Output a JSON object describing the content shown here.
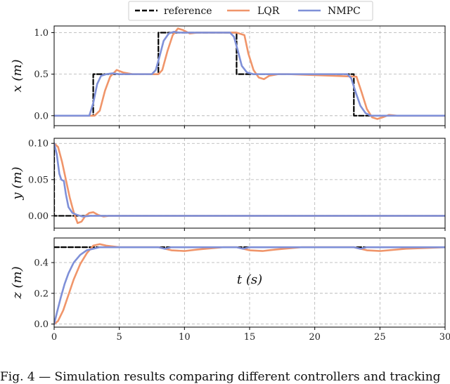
{
  "legend": [
    {
      "label": "reference",
      "color": "#000000",
      "style": "dashed"
    },
    {
      "label": "LQR",
      "color": "#f0956a",
      "style": "solid"
    },
    {
      "label": "NMPC",
      "color": "#7f90d8",
      "style": "solid"
    }
  ],
  "xlabel": "t (s)",
  "caption": "Fig. 4 — Simulation results comparing different controllers and tracking",
  "chart_data": [
    {
      "type": "line",
      "ylabel": "x (m)",
      "xlim": [
        0,
        30
      ],
      "ylim": [
        -0.12,
        1.08
      ],
      "xticks": [
        0,
        5,
        10,
        15,
        20,
        25,
        30
      ],
      "yticks": [
        0.0,
        0.5,
        1.0
      ],
      "ytick_labels": [
        "0.0",
        "0.5",
        "1.0"
      ],
      "grid": true,
      "series": [
        {
          "name": "reference",
          "x": [
            0,
            3,
            3,
            8,
            8,
            14,
            14,
            23,
            23,
            30
          ],
          "y": [
            0,
            0,
            0.5,
            0.5,
            1.0,
            1.0,
            0.5,
            0.5,
            0,
            0
          ]
        },
        {
          "name": "LQR",
          "x": [
            0,
            3.1,
            3.5,
            3.9,
            4.3,
            4.8,
            5.3,
            6,
            8,
            8.3,
            8.7,
            9.1,
            9.5,
            9.9,
            10.4,
            11,
            14,
            14.6,
            14.9,
            15.3,
            15.7,
            16.1,
            16.5,
            17.2,
            18,
            23.2,
            23.6,
            24,
            24.4,
            24.8,
            25.2,
            25.7,
            26.3,
            27,
            30
          ],
          "y": [
            0,
            0,
            0.06,
            0.3,
            0.47,
            0.55,
            0.52,
            0.5,
            0.5,
            0.55,
            0.78,
            0.97,
            1.05,
            1.03,
            0.99,
            1.0,
            1.0,
            0.97,
            0.75,
            0.55,
            0.46,
            0.44,
            0.48,
            0.5,
            0.5,
            0.47,
            0.28,
            0.08,
            -0.02,
            -0.04,
            -0.02,
            0.01,
            0.0,
            0.0,
            0.0
          ]
        },
        {
          "name": "NMPC",
          "x": [
            0,
            2.7,
            3.0,
            3.3,
            3.6,
            4.0,
            4.5,
            5,
            7.5,
            7.8,
            8.1,
            8.4,
            8.8,
            9.2,
            9.6,
            10,
            13.5,
            13.8,
            14.1,
            14.4,
            14.8,
            15.3,
            16,
            22.5,
            22.8,
            23.1,
            23.5,
            23.9,
            24.3,
            25,
            30
          ],
          "y": [
            0,
            0,
            0.15,
            0.38,
            0.48,
            0.5,
            0.51,
            0.5,
            0.5,
            0.55,
            0.72,
            0.9,
            0.99,
            1.01,
            1.0,
            1.0,
            1.0,
            0.95,
            0.78,
            0.6,
            0.52,
            0.5,
            0.5,
            0.5,
            0.45,
            0.3,
            0.12,
            0.03,
            0.0,
            0.0,
            0.0
          ]
        }
      ]
    },
    {
      "type": "line",
      "ylabel": "y (m)",
      "xlim": [
        0,
        30
      ],
      "ylim": [
        -0.017,
        0.107
      ],
      "xticks": [
        0,
        5,
        10,
        15,
        20,
        25,
        30
      ],
      "yticks": [
        0.0,
        0.05,
        0.1
      ],
      "ytick_labels": [
        "0.00",
        "0.05",
        "0.10"
      ],
      "grid": true,
      "series": [
        {
          "name": "reference",
          "x": [
            0,
            0,
            30
          ],
          "y": [
            0.1,
            0,
            0
          ]
        },
        {
          "name": "LQR",
          "x": [
            0,
            0.3,
            0.6,
            0.9,
            1.2,
            1.5,
            1.8,
            2.1,
            2.4,
            2.7,
            3.0,
            3.4,
            3.8,
            4.2,
            30
          ],
          "y": [
            0.1,
            0.095,
            0.075,
            0.05,
            0.025,
            0.005,
            -0.01,
            -0.008,
            0.0,
            0.004,
            0.005,
            0.001,
            -0.001,
            0.0,
            0.0
          ]
        },
        {
          "name": "NMPC",
          "x": [
            0,
            0.2,
            0.4,
            0.55,
            0.75,
            0.9,
            1.1,
            1.4,
            1.8,
            2.2,
            2.8,
            30
          ],
          "y": [
            0.1,
            0.085,
            0.058,
            0.05,
            0.048,
            0.03,
            0.012,
            0.004,
            0.001,
            -0.001,
            0.0,
            0.0
          ]
        }
      ]
    },
    {
      "type": "line",
      "ylabel": "z (m)",
      "xlim": [
        0,
        30
      ],
      "ylim": [
        -0.02,
        0.56
      ],
      "xticks": [
        0,
        5,
        10,
        15,
        20,
        25,
        30
      ],
      "xtick_labels": [
        "0",
        "5",
        "10",
        "15",
        "20",
        "25",
        "30"
      ],
      "yticks": [
        0.0,
        0.2,
        0.4
      ],
      "ytick_labels": [
        "0.0",
        "0.2",
        "0.4"
      ],
      "grid": true,
      "series": [
        {
          "name": "reference",
          "x": [
            0,
            0,
            30
          ],
          "y": [
            0.5,
            0.5,
            0.5
          ]
        },
        {
          "name": "LQR",
          "x": [
            0,
            0.3,
            0.7,
            1.1,
            1.5,
            2.0,
            2.5,
            3.0,
            3.5,
            4.0,
            5.0,
            6,
            8,
            9,
            10,
            11,
            13,
            14,
            15,
            16,
            17,
            19,
            23,
            24,
            25,
            27,
            30
          ],
          "y": [
            0,
            0.02,
            0.09,
            0.19,
            0.29,
            0.39,
            0.46,
            0.51,
            0.52,
            0.51,
            0.5,
            0.5,
            0.5,
            0.48,
            0.475,
            0.485,
            0.5,
            0.5,
            0.48,
            0.475,
            0.485,
            0.5,
            0.5,
            0.48,
            0.475,
            0.49,
            0.5
          ]
        },
        {
          "name": "NMPC",
          "x": [
            0,
            0.2,
            0.5,
            0.8,
            1.1,
            1.5,
            2.0,
            2.5,
            3.0,
            3.5,
            5,
            8,
            8.5,
            9,
            14,
            14.5,
            15,
            23,
            23.5,
            24,
            30
          ],
          "y": [
            0,
            0.07,
            0.17,
            0.26,
            0.33,
            0.4,
            0.45,
            0.48,
            0.49,
            0.5,
            0.5,
            0.5,
            0.49,
            0.5,
            0.5,
            0.49,
            0.5,
            0.5,
            0.49,
            0.5,
            0.5
          ]
        }
      ]
    }
  ]
}
